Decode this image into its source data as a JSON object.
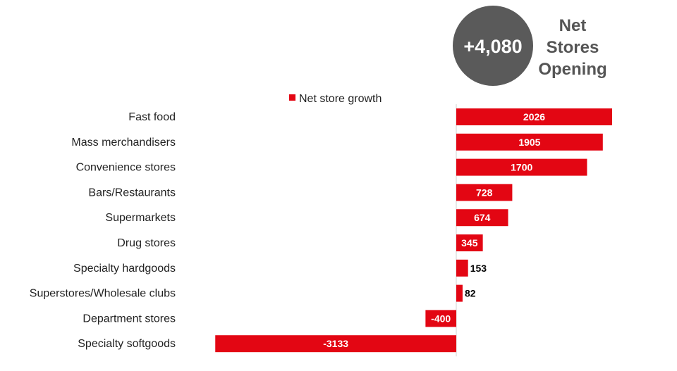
{
  "badge": {
    "value": "+4,080",
    "caption_lines": [
      "Net",
      "Stores",
      "Opening"
    ],
    "circle_color": "#5a5a5a"
  },
  "chart_data": {
    "type": "bar",
    "orientation": "horizontal",
    "categories": [
      "Fast food",
      "Mass merchandisers",
      "Convenience stores",
      "Bars/Restaurants",
      "Supermarkets",
      "Drug stores",
      "Specialty hardgoods",
      "Superstores/Wholesale clubs",
      "Department stores",
      "Specialty softgoods"
    ],
    "series": [
      {
        "name": "Net store growth",
        "values": [
          2026,
          1905,
          1700,
          728,
          674,
          345,
          153,
          82,
          -400,
          -3133
        ],
        "color": "#e30613"
      }
    ],
    "data_labels": [
      "2026",
      "1905",
      "1700",
      "728",
      "674",
      "345",
      "153",
      "82",
      "-400",
      "-3133"
    ],
    "xlim": [
      -3133,
      2026
    ],
    "legend_position": "top",
    "grid": false,
    "title": "",
    "xlabel": "",
    "ylabel": ""
  }
}
